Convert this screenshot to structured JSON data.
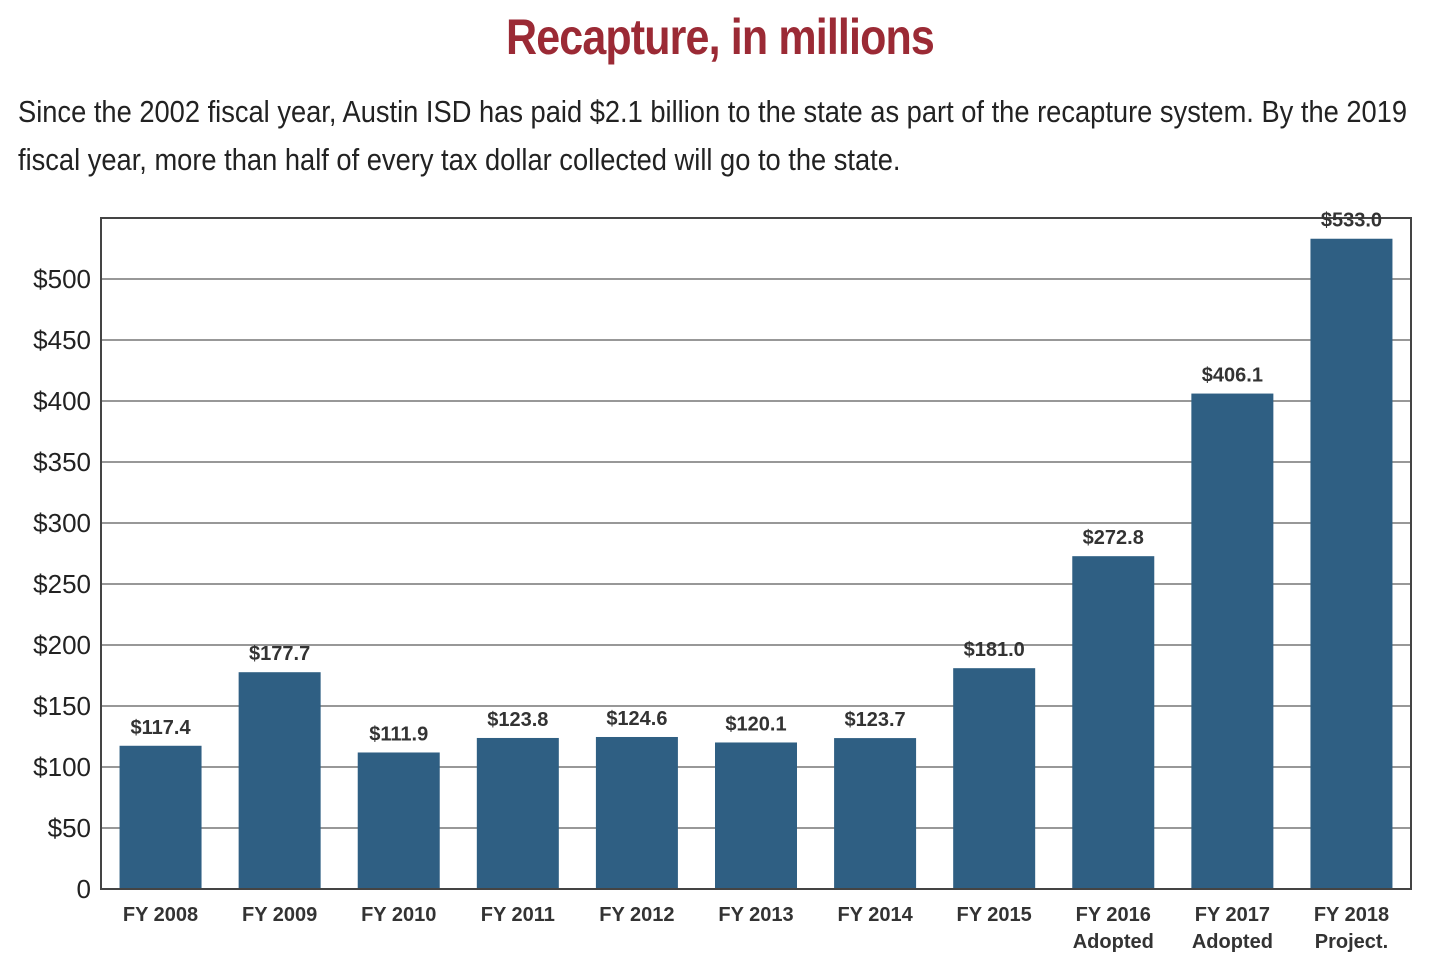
{
  "colors": {
    "title": "#9b2a35",
    "bar": "#2f5f83",
    "grid": "#777777",
    "axis": "#444444"
  },
  "chart_data": {
    "type": "bar",
    "title": "Recapture, in millions",
    "subtitle": "Since the 2002 fiscal year, Austin ISD has paid $2.1 billion to the state as part of the recapture system. By the 2019 fiscal year, more than half of every tax dollar collected will go to the state.",
    "categories": [
      [
        "FY 2008"
      ],
      [
        "FY 2009"
      ],
      [
        "FY 2010"
      ],
      [
        "FY 2011"
      ],
      [
        "FY 2012"
      ],
      [
        "FY 2013"
      ],
      [
        "FY 2014"
      ],
      [
        "FY 2015"
      ],
      [
        "FY 2016",
        "Adopted"
      ],
      [
        "FY 2017",
        "Adopted"
      ],
      [
        "FY 2018",
        "Project."
      ]
    ],
    "values": [
      117.4,
      177.7,
      111.9,
      123.8,
      124.6,
      120.1,
      123.7,
      181.0,
      272.8,
      406.1,
      533.0
    ],
    "data_labels": [
      "$117.4",
      "$177.7",
      "$111.9",
      "$123.8",
      "$124.6",
      "$120.1",
      "$123.7",
      "$181.0",
      "$272.8",
      "$406.1",
      "$533.0"
    ],
    "ylim": [
      0,
      550
    ],
    "yticks": [
      0,
      50,
      100,
      150,
      200,
      250,
      300,
      350,
      400,
      450,
      500
    ],
    "ytick_labels": [
      "0",
      "$50",
      "$100",
      "$150",
      "$200",
      "$250",
      "$300",
      "$350",
      "$400",
      "$450",
      "$500"
    ],
    "grid": true,
    "legend": "none"
  }
}
